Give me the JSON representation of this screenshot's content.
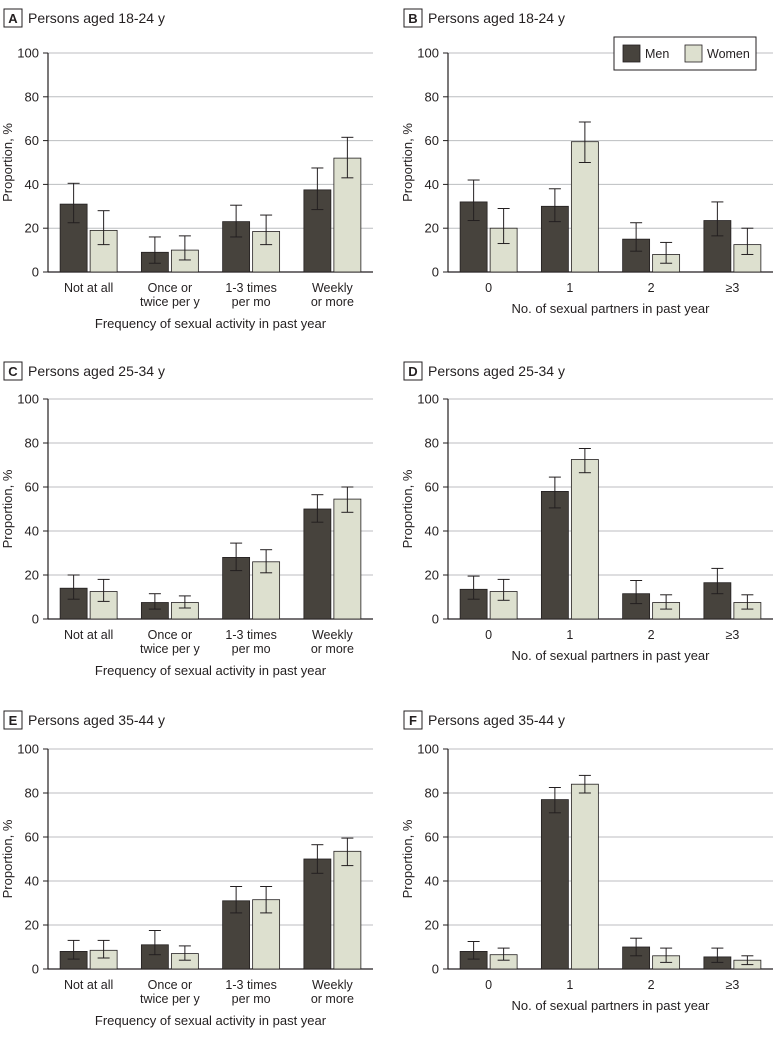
{
  "colors": {
    "men": "#47433d",
    "women": "#dde0cf",
    "axis": "#231f20",
    "grid": "#bcbec0",
    "error": "#231f20"
  },
  "legend": {
    "labels": [
      "Men",
      "Women"
    ]
  },
  "chart_data": [
    {
      "type": "bar",
      "panel": "A",
      "title": "Persons aged 18-24 y",
      "xlabel": "Frequency of sexual activity in past year",
      "ylabel": "Proportion, %",
      "ylim": [
        0,
        100
      ],
      "yticks": [
        "0",
        "20",
        "40",
        "60",
        "80",
        "100"
      ],
      "grid": true,
      "categories": [
        [
          "Not at all"
        ],
        [
          "Once or",
          "twice per y"
        ],
        [
          "1-3 times",
          "per mo"
        ],
        [
          "Weekly",
          "or more"
        ]
      ],
      "series": [
        {
          "name": "Men",
          "values": [
            31,
            9,
            23,
            37.5
          ],
          "err_low": [
            22.5,
            4,
            16,
            28.5
          ],
          "err_high": [
            40.5,
            16,
            30.5,
            47.5
          ]
        },
        {
          "name": "Women",
          "values": [
            19,
            10,
            18.5,
            52
          ],
          "err_low": [
            12.5,
            5.5,
            12.5,
            43
          ],
          "err_high": [
            28,
            16.5,
            26,
            61.5
          ]
        }
      ]
    },
    {
      "type": "bar",
      "panel": "B",
      "title": "Persons aged 18-24 y",
      "xlabel": "No. of sexual partners in past year",
      "ylabel": "Proportion, %",
      "ylim": [
        0,
        100
      ],
      "yticks": [
        "0",
        "20",
        "40",
        "60",
        "80",
        "100"
      ],
      "grid": true,
      "legend_position": "top-right",
      "categories": [
        [
          "0"
        ],
        [
          "1"
        ],
        [
          "2"
        ],
        [
          "≥3"
        ]
      ],
      "series": [
        {
          "name": "Men",
          "values": [
            32,
            30,
            15,
            23.5
          ],
          "err_low": [
            23.5,
            23,
            9.5,
            16.5
          ],
          "err_high": [
            42,
            38,
            22.5,
            32
          ]
        },
        {
          "name": "Women",
          "values": [
            20,
            59.5,
            8,
            12.5
          ],
          "err_low": [
            13,
            50,
            4,
            8
          ],
          "err_high": [
            29,
            68.5,
            13.5,
            20
          ]
        }
      ]
    },
    {
      "type": "bar",
      "panel": "C",
      "title": "Persons aged 25-34 y",
      "xlabel": "Frequency of sexual activity in past year",
      "ylabel": "Proportion, %",
      "ylim": [
        0,
        100
      ],
      "yticks": [
        "0",
        "20",
        "40",
        "60",
        "80",
        "100"
      ],
      "grid": true,
      "categories": [
        [
          "Not at all"
        ],
        [
          "Once or",
          "twice per y"
        ],
        [
          "1-3 times",
          "per mo"
        ],
        [
          "Weekly",
          "or more"
        ]
      ],
      "series": [
        {
          "name": "Men",
          "values": [
            14,
            7.5,
            28,
            50
          ],
          "err_low": [
            9,
            4.5,
            22,
            44
          ],
          "err_high": [
            20,
            11.5,
            34.5,
            56.5
          ]
        },
        {
          "name": "Women",
          "values": [
            12.5,
            7.5,
            26,
            54.5
          ],
          "err_low": [
            8,
            5,
            21,
            48.5
          ],
          "err_high": [
            18,
            10.5,
            31.5,
            60
          ]
        }
      ]
    },
    {
      "type": "bar",
      "panel": "D",
      "title": "Persons aged 25-34 y",
      "xlabel": "No. of sexual partners in past year",
      "ylabel": "Proportion, %",
      "ylim": [
        0,
        100
      ],
      "yticks": [
        "0",
        "20",
        "40",
        "60",
        "80",
        "100"
      ],
      "grid": true,
      "categories": [
        [
          "0"
        ],
        [
          "1"
        ],
        [
          "2"
        ],
        [
          "≥3"
        ]
      ],
      "series": [
        {
          "name": "Men",
          "values": [
            13.5,
            58,
            11.5,
            16.5
          ],
          "err_low": [
            9,
            50.5,
            7,
            11.5
          ],
          "err_high": [
            19.5,
            64.5,
            17.5,
            23
          ]
        },
        {
          "name": "Women",
          "values": [
            12.5,
            72.5,
            7.5,
            7.5
          ],
          "err_low": [
            8.5,
            66.5,
            4.5,
            4.5
          ],
          "err_high": [
            18,
            77.5,
            11,
            11
          ]
        }
      ]
    },
    {
      "type": "bar",
      "panel": "E",
      "title": "Persons aged 35-44 y",
      "xlabel": "Frequency of sexual activity in past year",
      "ylabel": "Proportion, %",
      "ylim": [
        0,
        100
      ],
      "yticks": [
        "0",
        "20",
        "40",
        "60",
        "80",
        "100"
      ],
      "grid": true,
      "categories": [
        [
          "Not at all"
        ],
        [
          "Once or",
          "twice per y"
        ],
        [
          "1-3 times",
          "per mo"
        ],
        [
          "Weekly",
          "or more"
        ]
      ],
      "series": [
        {
          "name": "Men",
          "values": [
            8,
            11,
            31,
            50
          ],
          "err_low": [
            4.5,
            6.5,
            25.5,
            43.5
          ],
          "err_high": [
            13,
            17.5,
            37.5,
            56.5
          ]
        },
        {
          "name": "Women",
          "values": [
            8.5,
            7,
            31.5,
            53.5
          ],
          "err_low": [
            5,
            4,
            25.5,
            47
          ],
          "err_high": [
            13,
            10.5,
            37.5,
            59.5
          ]
        }
      ]
    },
    {
      "type": "bar",
      "panel": "F",
      "title": "Persons aged 35-44 y",
      "xlabel": "No. of sexual partners in past year",
      "ylabel": "Proportion, %",
      "ylim": [
        0,
        100
      ],
      "yticks": [
        "0",
        "20",
        "40",
        "60",
        "80",
        "100"
      ],
      "grid": true,
      "categories": [
        [
          "0"
        ],
        [
          "1"
        ],
        [
          "2"
        ],
        [
          "≥3"
        ]
      ],
      "series": [
        {
          "name": "Men",
          "values": [
            8,
            77,
            10,
            5.5
          ],
          "err_low": [
            4.5,
            71,
            6,
            3
          ],
          "err_high": [
            12.5,
            82.5,
            14,
            9.5
          ]
        },
        {
          "name": "Women",
          "values": [
            6.5,
            84,
            6,
            4
          ],
          "err_low": [
            4,
            80,
            3,
            2
          ],
          "err_high": [
            9.5,
            88,
            9.5,
            6
          ]
        }
      ]
    }
  ]
}
